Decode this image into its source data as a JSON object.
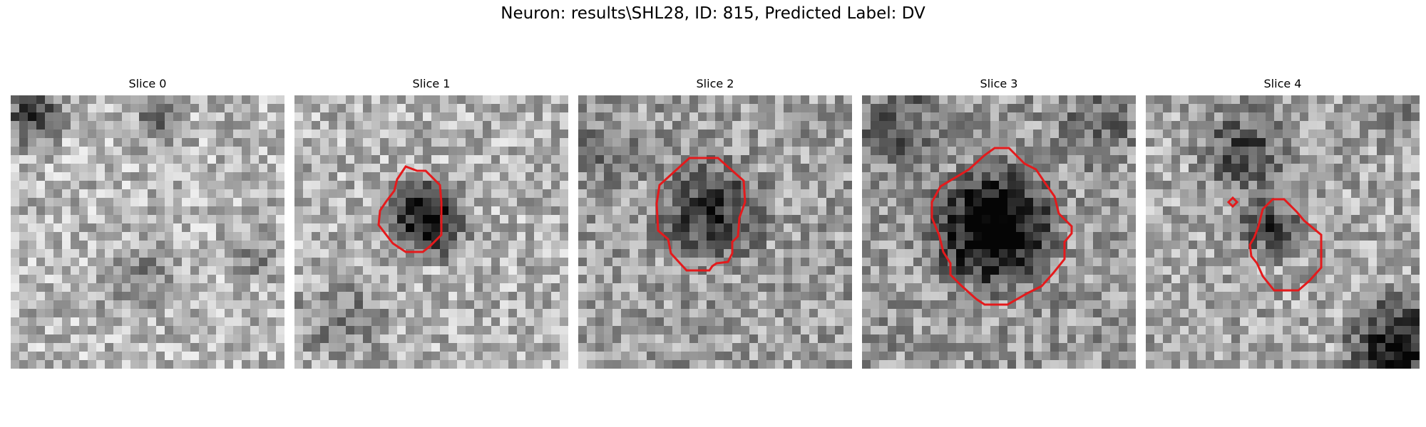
{
  "figure": {
    "title": "Neuron: results\\SHL28, ID: 815, Predicted Label: DV"
  },
  "contour_color": "#e41a1c",
  "colormap": "gray",
  "panels": [
    {
      "title": "Slice 0",
      "has_contour": false
    },
    {
      "title": "Slice 1",
      "has_contour": true
    },
    {
      "title": "Slice 2",
      "has_contour": true
    },
    {
      "title": "Slice 3",
      "has_contour": true
    },
    {
      "title": "Slice 4",
      "has_contour": true
    }
  ]
}
